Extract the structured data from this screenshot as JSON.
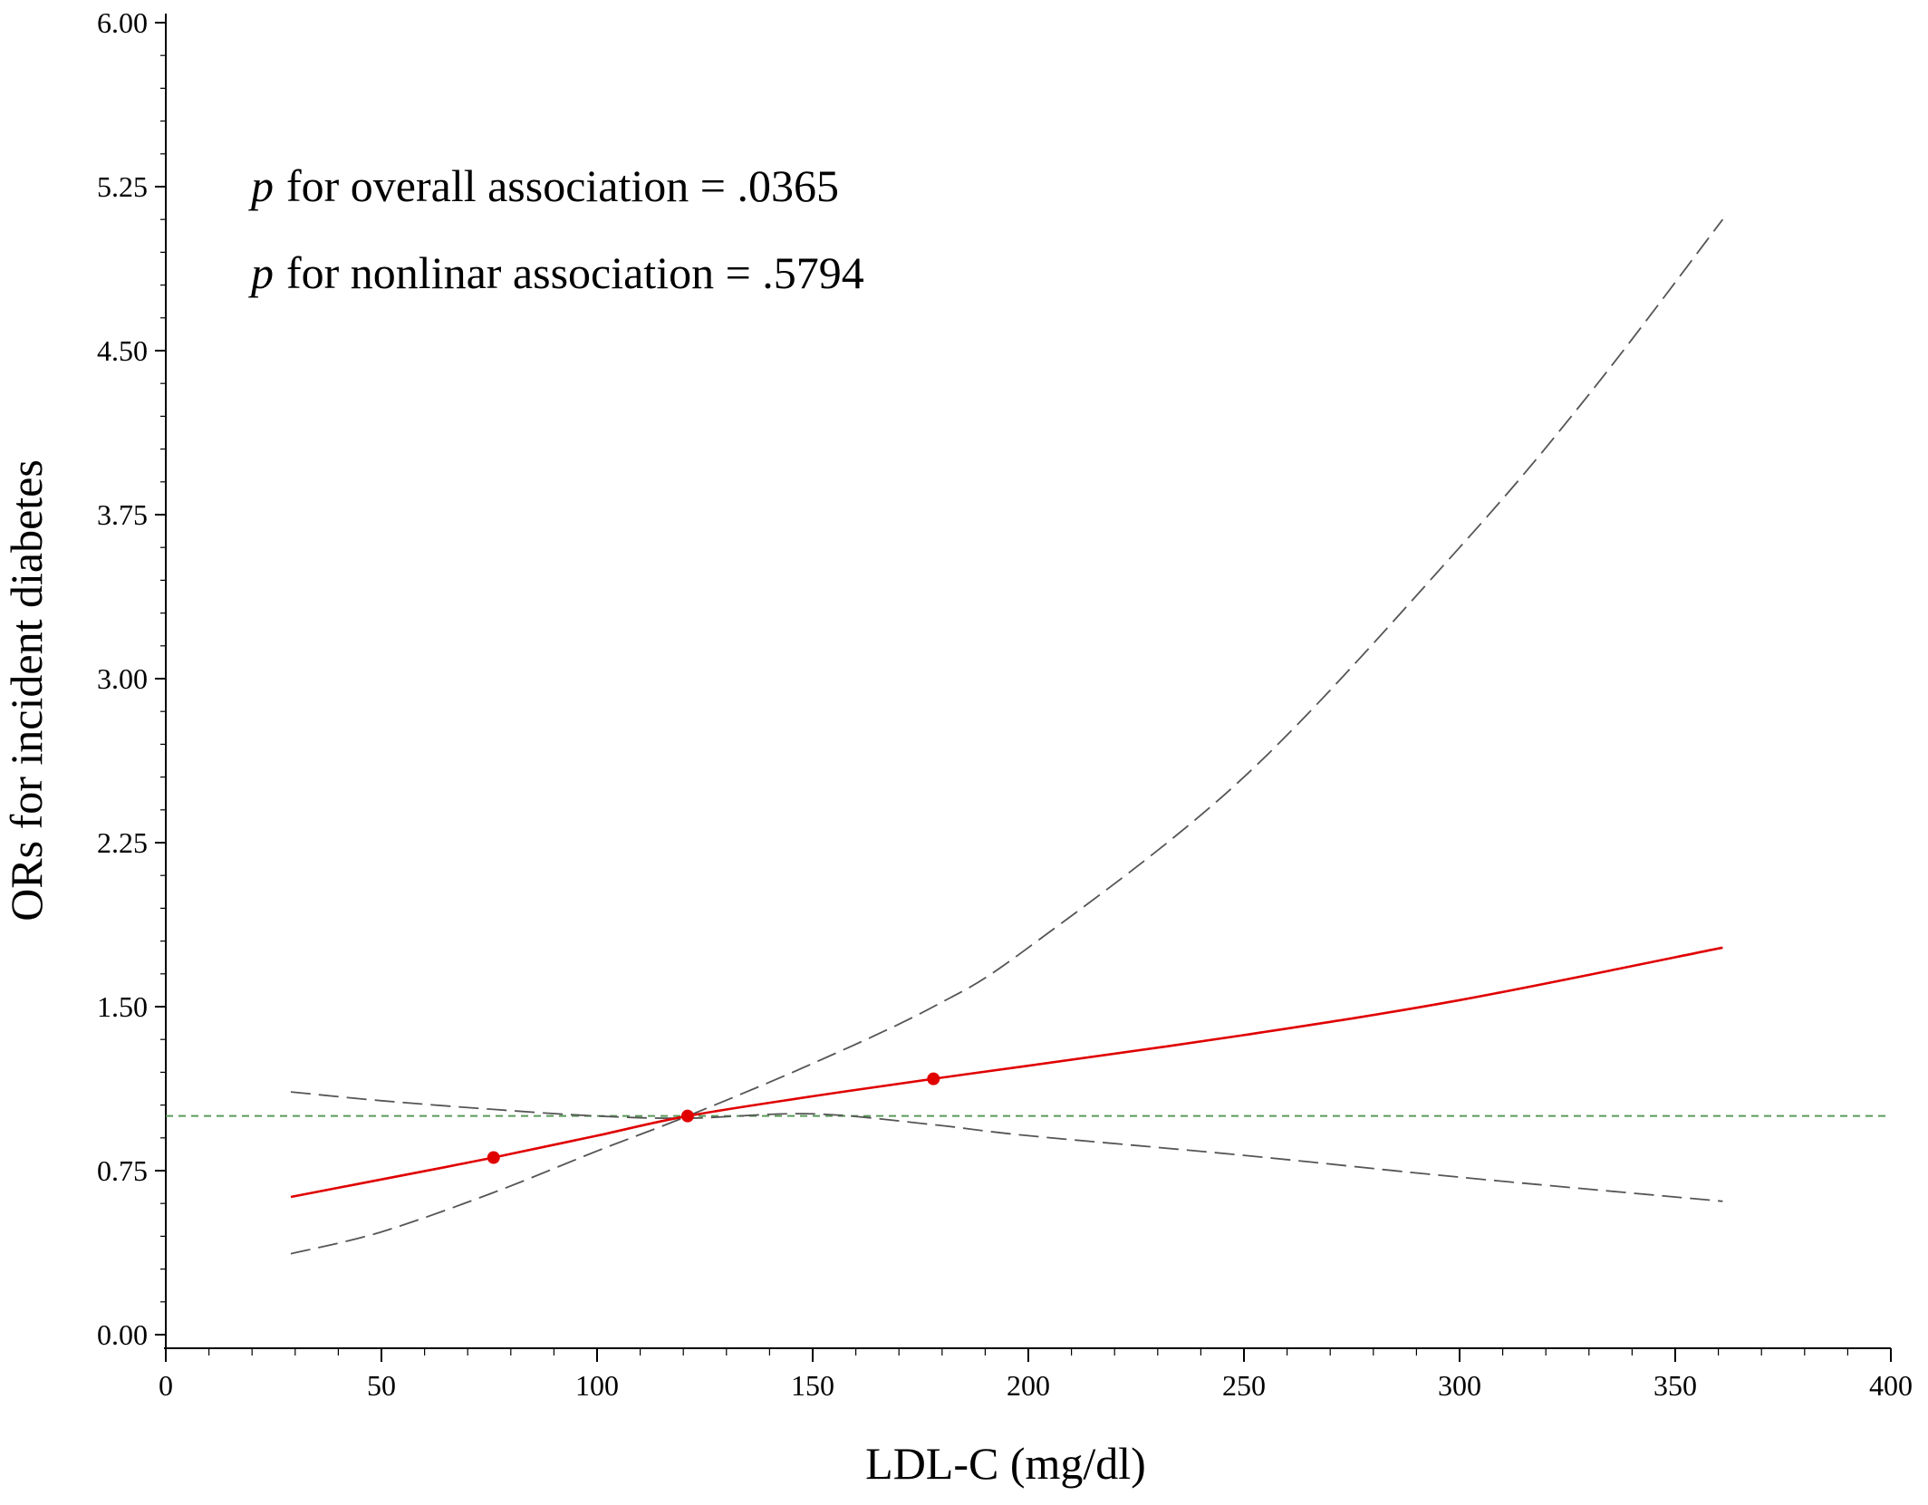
{
  "chart_data": {
    "type": "line",
    "title": "",
    "xlabel": "LDL-C (mg/dl)",
    "ylabel": "ORs for incident diabetes",
    "xlim": [
      0,
      400
    ],
    "ylim": [
      0,
      6
    ],
    "x_ticks": [
      "0",
      "50",
      "100",
      "150",
      "200",
      "250",
      "300",
      "350",
      "400"
    ],
    "y_ticks": [
      "0.00",
      "0.75",
      "1.50",
      "2.25",
      "3.00",
      "3.75",
      "4.50",
      "5.25",
      "6.00"
    ],
    "annotations": [
      {
        "p": "p",
        "text": "for overall association = .0365"
      },
      {
        "p": "p",
        "text": "for nonlinar association = .5794"
      }
    ],
    "reference_line": {
      "y": 1.0,
      "color": "#5a9a5a"
    },
    "series": [
      {
        "role": "estimate",
        "color": "#e00000",
        "x": [
          29,
          50,
          76,
          100,
          121,
          150,
          178,
          200,
          250,
          300,
          361
        ],
        "y": [
          0.63,
          0.71,
          0.81,
          0.91,
          1.0,
          1.09,
          1.17,
          1.23,
          1.37,
          1.53,
          1.77
        ]
      },
      {
        "role": "upper-ci",
        "color": "#555555",
        "x": [
          29,
          50,
          76,
          100,
          121,
          150,
          178,
          200,
          250,
          300,
          330,
          361
        ],
        "y": [
          0.37,
          0.47,
          0.65,
          0.84,
          1.0,
          1.24,
          1.5,
          1.77,
          2.55,
          3.6,
          4.3,
          5.1
        ]
      },
      {
        "role": "lower-ci",
        "color": "#555555",
        "x": [
          29,
          50,
          76,
          100,
          121,
          150,
          178,
          200,
          250,
          300,
          361
        ],
        "y": [
          1.11,
          1.07,
          1.03,
          1.0,
          0.99,
          1.01,
          0.96,
          0.91,
          0.82,
          0.72,
          0.61
        ]
      }
    ],
    "points": {
      "color": "#e00000",
      "x": [
        76,
        121,
        178
      ],
      "y": [
        0.81,
        1.0,
        1.17
      ]
    }
  }
}
